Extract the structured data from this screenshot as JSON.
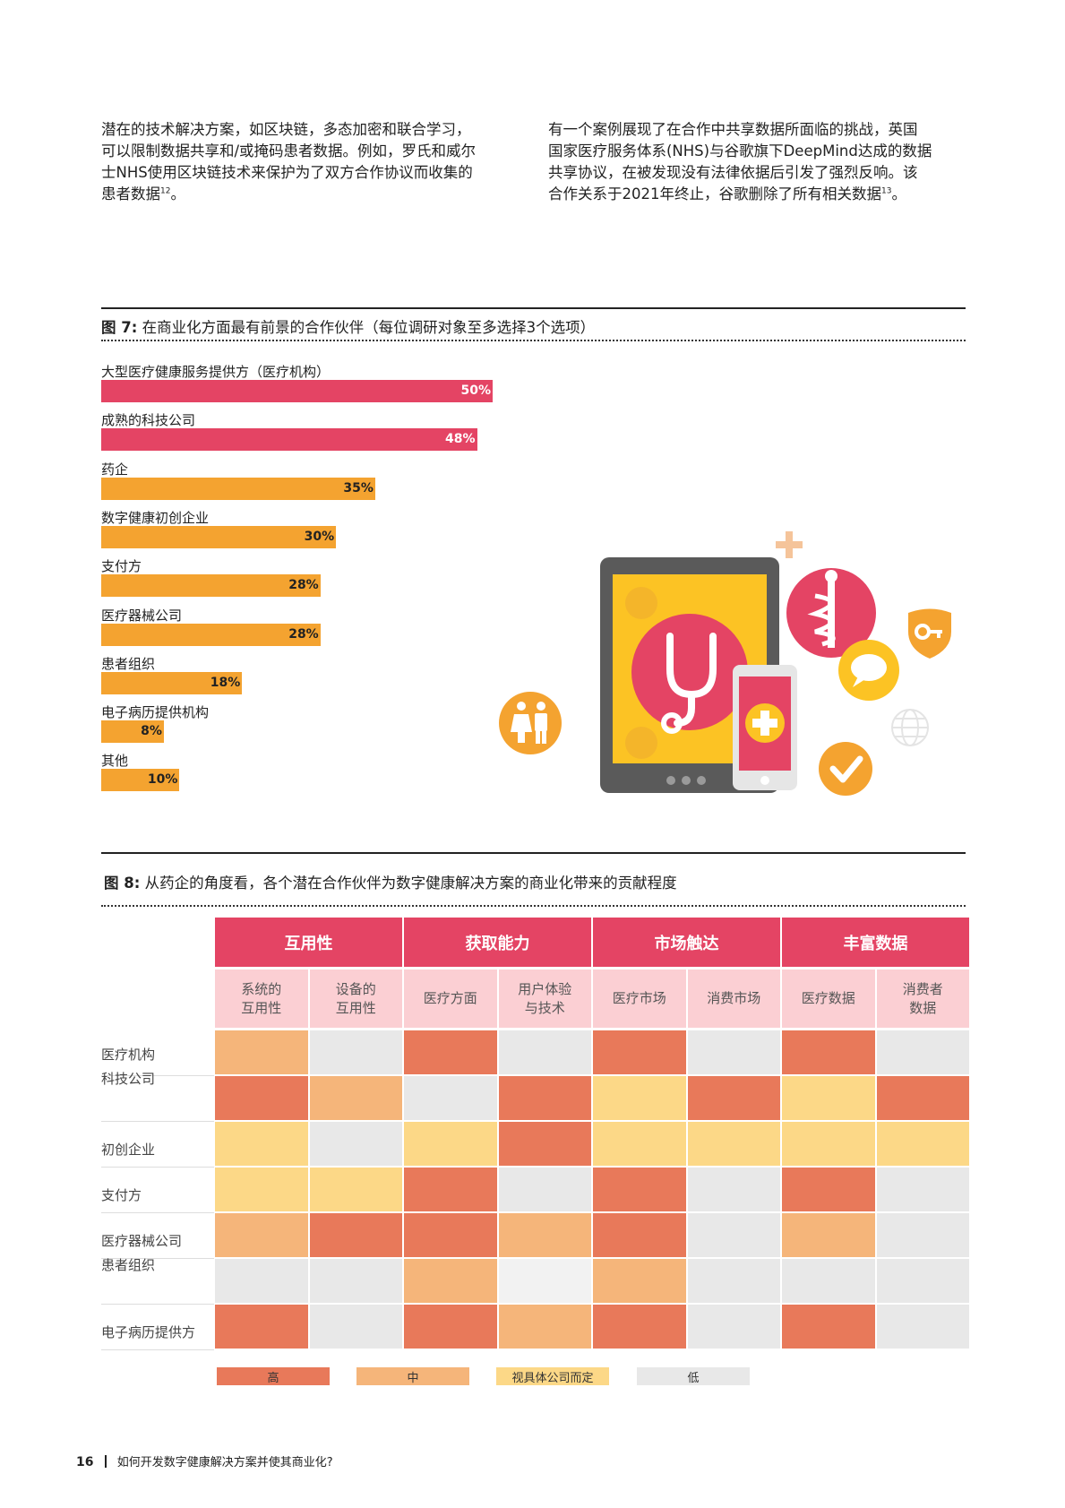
{
  "intro": {
    "left": [
      "潜在的技术解决方案，如区块链，多态加密和联合学习，",
      "可以限制数据共享和/或掩码患者数据。例如，罗氏和威尔",
      "士NHS使用区块链技术来保护为了双方合作协议而收集的",
      "患者数据"
    ],
    "left_ref": "12",
    "left_end": "。",
    "right": [
      "有一个案例展现了在合作中共享数据所面临的挑战，英国",
      "国家医疗服务体系(NHS)与谷歌旗下DeepMind达成的数据",
      "共享协议，在被发现没有法律依据后引发了强烈反响。该",
      "合作关系于2021年终止，谷歌删除了所有相关数据"
    ],
    "right_ref": "13",
    "right_end": "。"
  },
  "fig7": {
    "number": "图 7:",
    "title": "在商业化方面最有前景的合作伙伴（每位调研对象至多选择3个选项）",
    "chart_data": {
      "type": "bar",
      "orientation": "horizontal",
      "categories": [
        "大型医疗健康服务提供方（医疗机构）",
        "成熟的科技公司",
        "药企",
        "数字健康初创企业",
        "支付方",
        "医疗器械公司",
        "患者组织",
        "电子病历提供机构",
        "其他"
      ],
      "values": [
        50,
        48,
        35,
        30,
        28,
        28,
        18,
        8,
        10
      ],
      "labels": [
        "50%",
        "48%",
        "35%",
        "30%",
        "28%",
        "28%",
        "18%",
        "8%",
        "10%"
      ],
      "colors": [
        "#e44464",
        "#e44464",
        "#f4a330",
        "#f4a330",
        "#f4a330",
        "#f4a330",
        "#f4a330",
        "#f4a330",
        "#f4a330"
      ],
      "xlim": [
        0,
        100
      ]
    }
  },
  "fig8": {
    "number": "图 8:",
    "title": "从药企的角度看，各个潜在合作伙伴为数字健康解决方案的商业化带来的贡献程度",
    "chart_data": {
      "type": "heatmap",
      "groups": [
        {
          "name": "互用性",
          "columns": [
            "系统的\n互用性",
            "设备的\n互用性"
          ]
        },
        {
          "name": "获取能力",
          "columns": [
            "医疗方面",
            "用户体验\n与技术"
          ]
        },
        {
          "name": "市场触达",
          "columns": [
            "医疗市场",
            "消费市场"
          ]
        },
        {
          "name": "丰富数据",
          "columns": [
            "医疗数据",
            "消费者\n数据"
          ]
        }
      ],
      "rows": [
        "医疗机构",
        "科技公司",
        "初创企业",
        "支付方",
        "医疗器械公司",
        "患者组织",
        "电子病历提供方"
      ],
      "levels": {
        "H": {
          "label": "高",
          "color": "#e8795a"
        },
        "M": {
          "label": "中",
          "color": "#f5b57a"
        },
        "D": {
          "label": "视具体公司而定",
          "color": "#fcd887"
        },
        "L": {
          "label": "低",
          "color": "#e8e8e8"
        },
        "N": {
          "label": "",
          "color": "#f2f2f2"
        }
      },
      "values": [
        [
          "M",
          "L",
          "H",
          "L",
          "H",
          "L",
          "H",
          "L"
        ],
        [
          "H",
          "M",
          "L",
          "H",
          "D",
          "H",
          "D",
          "H"
        ],
        [
          "D",
          "L",
          "D",
          "H",
          "D",
          "D",
          "D",
          "D"
        ],
        [
          "D",
          "D",
          "H",
          "L",
          "H",
          "L",
          "H",
          "L"
        ],
        [
          "M",
          "H",
          "H",
          "M",
          "H",
          "L",
          "M",
          "L"
        ],
        [
          "L",
          "L",
          "M",
          "N",
          "M",
          "L",
          "L",
          "L"
        ],
        [
          "H",
          "L",
          "H",
          "M",
          "H",
          "L",
          "H",
          "L"
        ]
      ],
      "legend": [
        "H",
        "M",
        "D",
        "L"
      ]
    }
  },
  "footer": {
    "page": "16",
    "title": "如何开发数字健康解决方案并使其商业化?"
  },
  "colors": {
    "pink": "#e44464",
    "orange": "#f4a330",
    "yellow": "#fcc324",
    "gray": "#5a5a5a"
  }
}
